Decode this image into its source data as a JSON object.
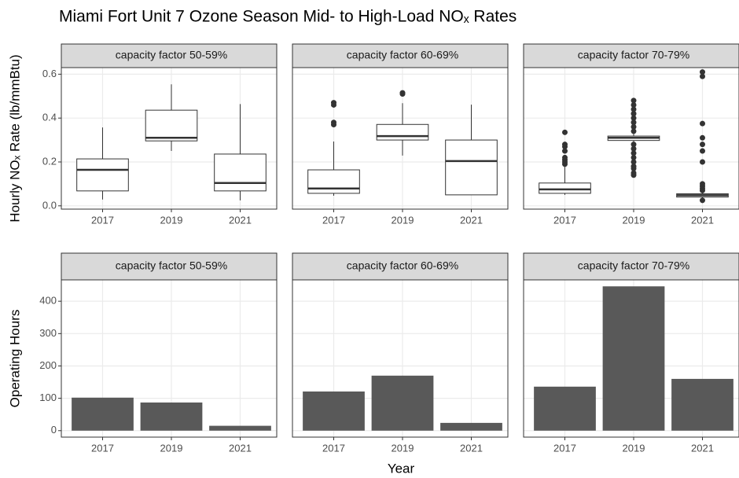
{
  "title": "Miami Fort Unit 7 Ozone Season Mid- to High-Load NOₓ Rates",
  "xlabel": "Year",
  "chart_data": [
    {
      "type": "box",
      "ylabel": "Hourly NOₓ Rate (lb/mmBtu)",
      "categories": [
        "2017",
        "2019",
        "2021"
      ],
      "ylim": [
        -0.015,
        0.63
      ],
      "yticks": [
        {
          "value": 0,
          "label": "0.0"
        },
        0.2,
        0.4,
        0.6
      ],
      "grid": true,
      "panels": [
        {
          "title": "capacity factor 50-59%",
          "boxes": [
            {
              "low": 0.029,
              "q1": 0.068,
              "median": 0.164,
              "q3": 0.214,
              "high": 0.357,
              "outliers": []
            },
            {
              "low": 0.25,
              "q1": 0.296,
              "median": 0.31,
              "q3": 0.436,
              "high": 0.554,
              "outliers": []
            },
            {
              "low": 0.025,
              "q1": 0.068,
              "median": 0.104,
              "q3": 0.236,
              "high": 0.464,
              "outliers": []
            }
          ]
        },
        {
          "title": "capacity factor 60-69%",
          "boxes": [
            {
              "low": 0.046,
              "q1": 0.057,
              "median": 0.079,
              "q3": 0.164,
              "high": 0.293,
              "outliers": [
                0.37,
                0.38,
                0.46,
                0.47
              ]
            },
            {
              "low": 0.229,
              "q1": 0.3,
              "median": 0.318,
              "q3": 0.371,
              "high": 0.468,
              "outliers": [
                0.51,
                0.515
              ]
            },
            {
              "low": 0.05,
              "q1": 0.05,
              "median": 0.204,
              "q3": 0.3,
              "high": 0.461,
              "outliers": []
            }
          ]
        },
        {
          "title": "capacity factor 70-79%",
          "boxes": [
            {
              "low": 0.05,
              "q1": 0.057,
              "median": 0.075,
              "q3": 0.104,
              "high": 0.186,
              "outliers": [
                0.19,
                0.2,
                0.21,
                0.22,
                0.25,
                0.27,
                0.28,
                0.335
              ]
            },
            {
              "low": 0.29,
              "q1": 0.298,
              "median": 0.31,
              "q3": 0.318,
              "high": 0.33,
              "outliers": [
                0.14,
                0.15,
                0.17,
                0.18,
                0.2,
                0.22,
                0.24,
                0.26,
                0.28,
                0.34,
                0.36,
                0.38,
                0.4,
                0.42,
                0.44,
                0.46,
                0.48
              ]
            },
            {
              "low": 0.035,
              "q1": 0.04,
              "median": 0.048,
              "q3": 0.055,
              "high": 0.06,
              "outliers": [
                0.025,
                0.07,
                0.08,
                0.09,
                0.1,
                0.2,
                0.25,
                0.28,
                0.31,
                0.375,
                0.59,
                0.61
              ]
            }
          ]
        }
      ]
    },
    {
      "type": "bar",
      "ylabel": "Operating Hours",
      "categories": [
        "2017",
        "2019",
        "2021"
      ],
      "ylim": [
        -20,
        466
      ],
      "yticks": [
        0,
        100,
        200,
        300,
        400
      ],
      "grid": true,
      "color": "#595959",
      "panels": [
        {
          "title": "capacity factor 50-59%",
          "values": [
            102,
            87,
            15
          ]
        },
        {
          "title": "capacity factor 60-69%",
          "values": [
            121,
            170,
            24
          ]
        },
        {
          "title": "capacity factor 70-79%",
          "values": [
            136,
            446,
            160
          ]
        }
      ]
    }
  ]
}
